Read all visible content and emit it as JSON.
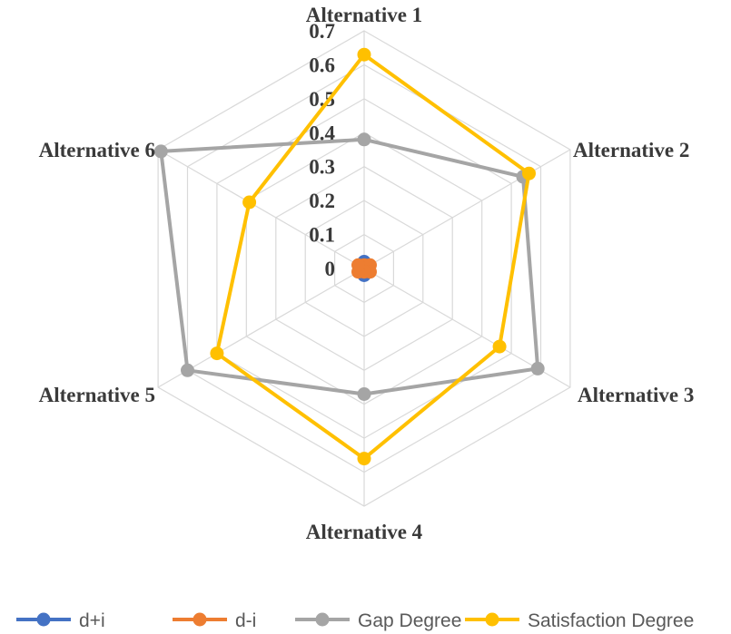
{
  "chart_data": {
    "type": "radar",
    "categories": [
      "Alternative 1",
      "Alternative 2",
      "Alternative 3",
      "Alternative 4",
      "Alternative 5",
      "Alternative 6"
    ],
    "r_range": [
      0,
      0.7
    ],
    "r_ticks": [
      "0",
      "0.1",
      "0.2",
      "0.3",
      "0.4",
      "0.5",
      "0.6",
      "0.7"
    ],
    "grid": true,
    "legend_position": "bottom",
    "series": [
      {
        "name": "d+i",
        "color": "#4472C4",
        "values": [
          0.02,
          0.01,
          0.015,
          0.02,
          0.015,
          0.01
        ]
      },
      {
        "name": "d-i",
        "color": "#ED7D31",
        "values": [
          0.01,
          0.02,
          0.02,
          0.01,
          0.02,
          0.02
        ]
      },
      {
        "name": "Gap Degree",
        "color": "#A5A5A5",
        "values": [
          0.38,
          0.54,
          0.59,
          0.37,
          0.6,
          0.69
        ]
      },
      {
        "name": "Satisfaction Degree",
        "color": "#FFC000",
        "values": [
          0.63,
          0.56,
          0.46,
          0.56,
          0.5,
          0.39
        ]
      }
    ]
  }
}
